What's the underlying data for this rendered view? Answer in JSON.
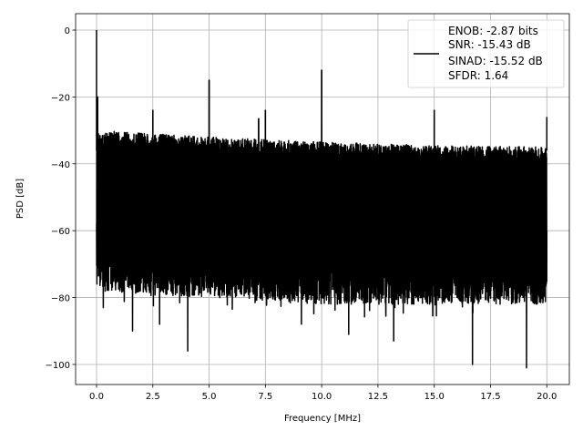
{
  "chart_data": {
    "type": "line",
    "title": "",
    "xlabel": "Frequency [MHz]",
    "ylabel": "PSD [dB]",
    "xlim": [
      -0.93,
      21.0
    ],
    "ylim": [
      -106,
      4.9
    ],
    "xticks": [
      0,
      2.5,
      5,
      7.5,
      10,
      12.5,
      15,
      17.5,
      20
    ],
    "xtick_labels": [
      "0.0",
      "2.5",
      "5.0",
      "7.5",
      "10.0",
      "12.5",
      "15.0",
      "17.5",
      "20.0"
    ],
    "yticks": [
      0,
      -20,
      -40,
      -60,
      -80,
      -100
    ],
    "ytick_labels": [
      "0",
      "−20",
      "−40",
      "−60",
      "−80",
      "−100"
    ],
    "grid": true,
    "legend_placement": "top-right",
    "series": [
      {
        "name": "ENOB: -2.87 bits\nSNR: -15.43 dB\nSINAD: -15.52 dB\nSFDR: 1.64",
        "color": "#000000",
        "x_range": [
          0,
          20
        ],
        "noise_floor_upper": [
          [
            0,
            -30
          ],
          [
            5,
            -32
          ],
          [
            10,
            -33.5
          ],
          [
            15,
            -34.5
          ],
          [
            20,
            -35
          ]
        ],
        "noise_floor_lower": [
          [
            0,
            -74
          ],
          [
            5,
            -76
          ],
          [
            10,
            -78
          ],
          [
            15,
            -78
          ],
          [
            20,
            -78
          ]
        ],
        "spurs": [
          [
            0,
            0
          ],
          [
            0.05,
            -20
          ],
          [
            2.5,
            -24
          ],
          [
            5,
            -15
          ],
          [
            7.2,
            -26.5
          ],
          [
            7.5,
            -24
          ],
          [
            10,
            -12
          ],
          [
            15,
            -24
          ],
          [
            20,
            -26
          ]
        ],
        "deep_dips": [
          [
            0.3,
            -83
          ],
          [
            1.6,
            -90
          ],
          [
            2.8,
            -88
          ],
          [
            4.05,
            -96
          ],
          [
            5,
            -86
          ],
          [
            9.1,
            -88
          ],
          [
            11.2,
            -91
          ],
          [
            13.2,
            -93
          ],
          [
            16.7,
            -100
          ],
          [
            19.1,
            -101
          ]
        ]
      }
    ],
    "legend_lines": [
      "ENOB: -2.87 bits",
      "SNR: -15.43 dB",
      "SINAD: -15.52 dB",
      "SFDR: 1.64"
    ]
  }
}
